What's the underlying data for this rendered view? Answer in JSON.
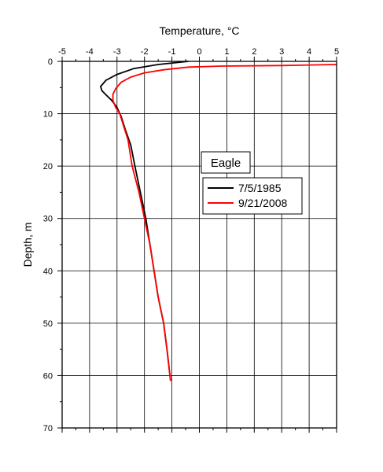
{
  "chart_data": {
    "type": "line",
    "xlabel": "Temperature, °C",
    "ylabel": "Depth, m",
    "xlim": [
      -5,
      5
    ],
    "ylim": [
      0,
      70
    ],
    "y_inverted": true,
    "x_axis_position": "top",
    "grid": true,
    "x_ticks": [
      -5,
      -4,
      -3,
      -2,
      -1,
      0,
      1,
      2,
      3,
      4,
      5
    ],
    "y_ticks": [
      0,
      10,
      20,
      30,
      40,
      50,
      60,
      70
    ],
    "legend_title": "Eagle",
    "legend_position": "right-middle",
    "series": [
      {
        "name": "7/5/1985",
        "color": "#000000",
        "points": [
          [
            -0.4,
            0
          ],
          [
            -1.5,
            0.6
          ],
          [
            -2.4,
            1.4
          ],
          [
            -3.0,
            2.5
          ],
          [
            -3.4,
            3.6
          ],
          [
            -3.6,
            4.8
          ],
          [
            -3.55,
            5.6
          ],
          [
            -3.4,
            6.4
          ],
          [
            -3.2,
            7.4
          ],
          [
            -3.0,
            8.8
          ],
          [
            -2.85,
            10.5
          ],
          [
            -2.7,
            13.0
          ],
          [
            -2.5,
            16.0
          ],
          [
            -2.35,
            20.0
          ],
          [
            -2.15,
            25.0
          ],
          [
            -1.95,
            30.0
          ],
          [
            -1.8,
            35.0
          ],
          [
            -1.65,
            40.0
          ],
          [
            -1.5,
            45.0
          ],
          [
            -1.3,
            50.0
          ],
          [
            -1.18,
            55.0
          ],
          [
            -1.05,
            61.0
          ]
        ]
      },
      {
        "name": "9/21/2008",
        "color": "#ff0000",
        "points": [
          [
            5.0,
            0.6
          ],
          [
            3.0,
            0.8
          ],
          [
            0.8,
            0.9
          ],
          [
            -0.4,
            1.1
          ],
          [
            -1.3,
            1.6
          ],
          [
            -2.0,
            2.2
          ],
          [
            -2.5,
            3.0
          ],
          [
            -2.85,
            4.0
          ],
          [
            -3.05,
            5.2
          ],
          [
            -3.15,
            6.3
          ],
          [
            -3.15,
            7.5
          ],
          [
            -3.05,
            8.8
          ],
          [
            -2.9,
            10.0
          ],
          [
            -2.75,
            12.5
          ],
          [
            -2.6,
            15.0
          ],
          [
            -2.45,
            20.0
          ],
          [
            -2.2,
            25.0
          ],
          [
            -2.0,
            30.0
          ],
          [
            -1.8,
            35.0
          ],
          [
            -1.65,
            40.0
          ],
          [
            -1.5,
            45.0
          ],
          [
            -1.3,
            50.0
          ],
          [
            -1.18,
            55.0
          ],
          [
            -1.05,
            61.0
          ]
        ]
      }
    ]
  }
}
